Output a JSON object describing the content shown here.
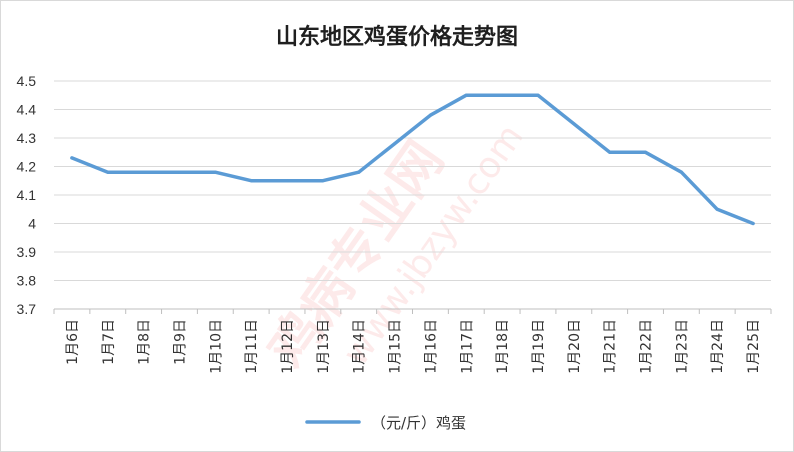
{
  "chart_data": {
    "type": "line",
    "title": "山东地区鸡蛋价格走势图",
    "categories": [
      "1月6日",
      "1月7日",
      "1月8日",
      "1月9日",
      "1月10日",
      "1月11日",
      "1月12日",
      "1月13日",
      "1月14日",
      "1月15日",
      "1月16日",
      "1月17日",
      "1月18日",
      "1月19日",
      "1月20日",
      "1月21日",
      "1月22日",
      "1月23日",
      "1月24日",
      "1月25日"
    ],
    "series": [
      {
        "name": "（元/斤）鸡蛋",
        "values": [
          4.23,
          4.18,
          4.18,
          4.18,
          4.18,
          4.15,
          4.15,
          4.15,
          4.18,
          4.28,
          4.38,
          4.45,
          4.45,
          4.45,
          4.35,
          4.25,
          4.25,
          4.18,
          4.05,
          4.0
        ]
      }
    ],
    "ylim": [
      3.7,
      4.5
    ],
    "yticks": [
      "4.5",
      "4.4",
      "4.3",
      "4.2",
      "4.1",
      "4",
      "3.9",
      "3.8",
      "3.7"
    ],
    "grid": true,
    "legend_position": "bottom",
    "line_color": "#5b9bd5"
  },
  "watermark": {
    "line1": "鸡病专业网",
    "line2": "www.jbzyw.com"
  }
}
